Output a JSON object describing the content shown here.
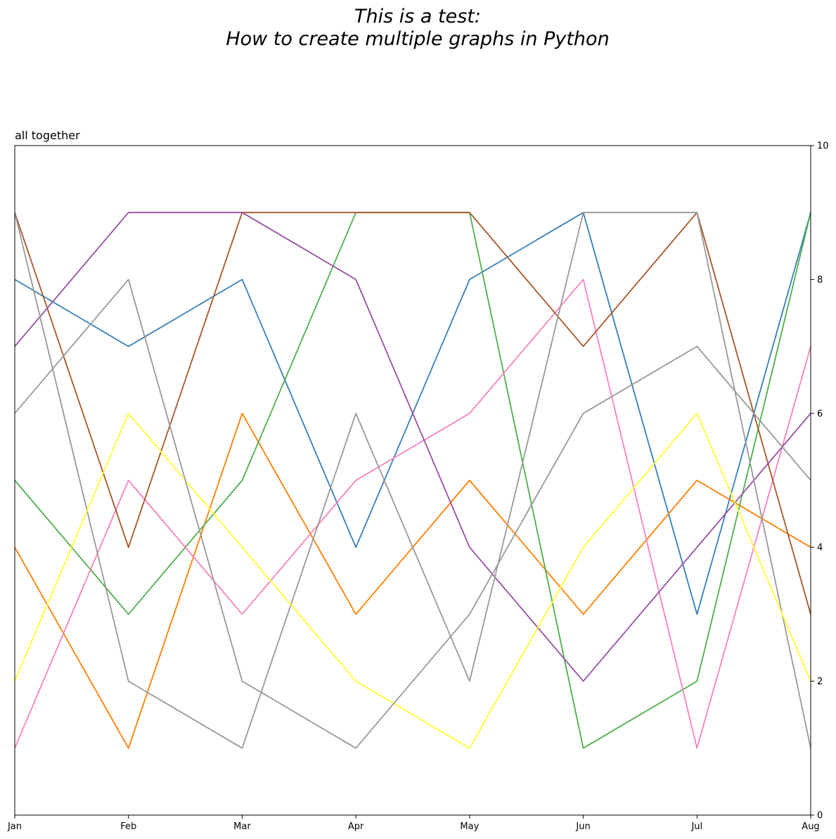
{
  "chart_data": {
    "type": "line",
    "title_lines": [
      "This is a test:",
      "How to create multiple graphs in Python"
    ],
    "subtitle": "all together",
    "categories": [
      "Jan",
      "Feb",
      "Mar",
      "Apr",
      "May",
      "Jun",
      "Jul",
      "Aug"
    ],
    "y_axis": {
      "side": "right",
      "ylim": [
        0,
        10
      ],
      "ticks": [
        0,
        2,
        4,
        6,
        8,
        10
      ]
    },
    "grid": false,
    "legend": "none",
    "series": [
      {
        "color": "#377eb8",
        "values": [
          8,
          7,
          8,
          4,
          8,
          9,
          3,
          9
        ]
      },
      {
        "color": "#ff7f00",
        "values": [
          4,
          1,
          6,
          3,
          5,
          3,
          5,
          4
        ]
      },
      {
        "color": "#4daf4a",
        "values": [
          5,
          3,
          5,
          9,
          9,
          1,
          2,
          9
        ]
      },
      {
        "color": "#f781bf",
        "values": [
          1,
          5,
          3,
          5,
          6,
          8,
          1,
          7
        ]
      },
      {
        "color": "#a65628",
        "values": [
          9,
          4,
          9,
          9,
          9,
          7,
          9,
          3
        ]
      },
      {
        "color": "#984ea3",
        "values": [
          7,
          9,
          9,
          8,
          4,
          2,
          4,
          6
        ]
      },
      {
        "color": "#999999",
        "values": [
          9,
          2,
          1,
          6,
          2,
          9,
          9,
          1
        ]
      },
      {
        "color": "#ffff33",
        "values": [
          2,
          6,
          4,
          2,
          1,
          4,
          6,
          2
        ]
      },
      {
        "color": "#999999",
        "values": [
          6,
          8,
          2,
          1,
          3,
          6,
          7,
          5
        ]
      }
    ]
  }
}
